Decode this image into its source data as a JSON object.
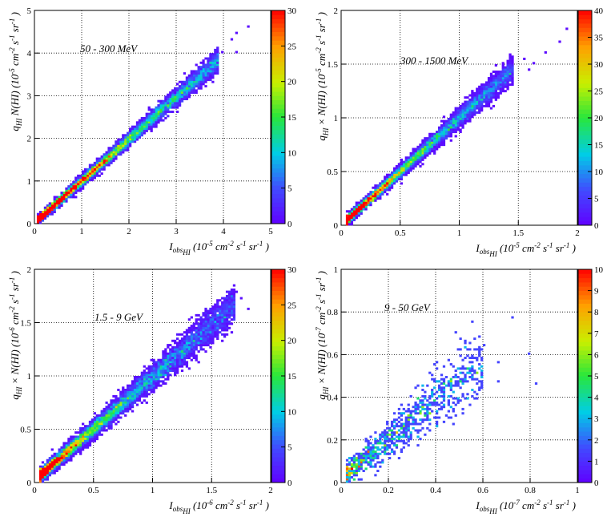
{
  "chart_data": [
    {
      "type": "heatmap",
      "annotation": "50 - 300 MeV",
      "xlim": [
        0,
        5
      ],
      "ylim": [
        0,
        5
      ],
      "x_ticks": [
        "0",
        "1",
        "2",
        "3",
        "4",
        "5"
      ],
      "y_ticks": [
        "0",
        "1",
        "2",
        "3",
        "4",
        "5"
      ],
      "xlabel": {
        "main": "I",
        "sub": "obs",
        "subsub": "HI",
        "units": "(10",
        "exp": "-5",
        "rest": " cm",
        "e2": "-2",
        "r2": " s",
        "e3": "-1",
        "r3": " sr",
        "e4": "-1",
        "r4": " )"
      },
      "ylabel": {
        "q": "q",
        "qsub": "HI",
        "pre": " N(HI) (10",
        "exp": "-5",
        "rest": " cm",
        "e2": "-2",
        "r2": " s",
        "e3": "-1",
        "r3": " sr",
        "e4": "-1"
      },
      "colorbar": {
        "max": 30,
        "ticks": [
          "0",
          "5",
          "10",
          "15",
          "20",
          "25",
          "30"
        ]
      },
      "trend": {
        "x0": 0.05,
        "x1": 3.9,
        "slope": 0.98,
        "intercept": 0.02,
        "spread": 0.09
      },
      "outliers": [
        [
          4.15,
          4.35
        ],
        [
          4.25,
          4.45
        ],
        [
          4.55,
          4.6
        ],
        [
          3.85,
          3.8
        ],
        [
          3.95,
          4.0
        ],
        [
          4.25,
          4.0
        ]
      ]
    },
    {
      "type": "heatmap",
      "annotation": "300 - 1500 MeV",
      "xlim": [
        0,
        2
      ],
      "ylim": [
        0,
        2
      ],
      "x_ticks": [
        "0",
        "0.5",
        "1",
        "1.5",
        "2"
      ],
      "y_ticks": [
        "0",
        "0.5",
        "1",
        "1.5",
        "2"
      ],
      "xlabel": {
        "main": "I",
        "sub": "obs",
        "subsub": "HI",
        "units": "(10",
        "exp": "-5",
        "rest": " cm",
        "e2": "-2",
        "r2": " s",
        "e3": "-1",
        "r3": " sr",
        "e4": "-1",
        "r4": " )"
      },
      "ylabel": {
        "q": "q",
        "qsub": "HI",
        "pre": " × N(HI) (10",
        "exp": "-5",
        "rest": " cm",
        "e2": "-2",
        "r2": " s",
        "e3": "-1",
        "r3": " sr",
        "e4": "-1"
      },
      "colorbar": {
        "max": 40,
        "ticks": [
          "0",
          "5",
          "10",
          "15",
          "20",
          "25",
          "30",
          "35",
          "40"
        ]
      },
      "trend": {
        "x0": 0.04,
        "x1": 1.45,
        "slope": 1.0,
        "intercept": 0.0,
        "spread": 0.04
      },
      "outliers": [
        [
          1.55,
          1.55
        ],
        [
          1.58,
          1.45
        ],
        [
          1.62,
          1.5
        ],
        [
          1.72,
          1.6
        ],
        [
          1.85,
          1.7
        ],
        [
          1.9,
          1.83
        ]
      ]
    },
    {
      "type": "heatmap",
      "annotation": "1.5 - 9 GeV",
      "xlim": [
        0,
        2
      ],
      "ylim": [
        0,
        2
      ],
      "x_ticks": [
        "0",
        "0.5",
        "1",
        "1.5",
        "2"
      ],
      "y_ticks": [
        "0",
        "0.5",
        "1",
        "1.5",
        "2"
      ],
      "xlabel": {
        "main": "I",
        "sub": "obs",
        "subsub": "HI",
        "units": "(10",
        "exp": "-6",
        "rest": " cm",
        "e2": "-2",
        "r2": " s",
        "e3": "-1",
        "r3": " sr",
        "e4": "-1",
        "r4": " )"
      },
      "ylabel": {
        "q": "q",
        "qsub": "HI",
        "pre": " × N(HI) (10",
        "exp": "-6",
        "rest": " cm",
        "e2": "-2",
        "r2": " s",
        "e3": "-1",
        "r3": " sr",
        "e4": "-1"
      },
      "colorbar": {
        "max": 30,
        "ticks": [
          "0",
          "5",
          "10",
          "15",
          "20",
          "25",
          "30"
        ]
      },
      "trend": {
        "x0": 0.04,
        "x1": 1.7,
        "slope": 0.97,
        "intercept": 0.02,
        "spread": 0.06
      },
      "outliers": [
        [
          1.7,
          1.78
        ],
        [
          1.75,
          1.72
        ],
        [
          1.8,
          1.62
        ],
        [
          1.55,
          1.45
        ],
        [
          1.6,
          1.58
        ]
      ]
    },
    {
      "type": "heatmap",
      "annotation": "9 - 50 GeV",
      "xlim": [
        0,
        1
      ],
      "ylim": [
        0,
        1
      ],
      "x_ticks": [
        "0",
        "0.2",
        "0.4",
        "0.6",
        "0.8",
        "1"
      ],
      "y_ticks": [
        "0",
        "0.2",
        "0.4",
        "0.6",
        "0.8",
        "1"
      ],
      "xlabel": {
        "main": "I",
        "sub": "obs",
        "subsub": "HI",
        "units": "(10",
        "exp": "-7",
        "rest": " cm",
        "e2": "-2",
        "r2": " s",
        "e3": "-1",
        "r3": " sr",
        "e4": "-1",
        "r4": " )"
      },
      "ylabel": {
        "q": "q",
        "qsub": "HI",
        "pre": " × N(HI) (10",
        "exp": "-7",
        "rest": " cm",
        "e2": "-2",
        "r2": " s",
        "e3": "-1",
        "r3": " sr",
        "e4": "-1"
      },
      "colorbar": {
        "max": 10,
        "ticks": [
          "0",
          "1",
          "2",
          "3",
          "4",
          "5",
          "6",
          "7",
          "8",
          "9",
          "10"
        ]
      },
      "trend": {
        "x0": 0.02,
        "x1": 0.6,
        "slope": 0.92,
        "intercept": 0.02,
        "spread": 0.06
      },
      "outliers": [
        [
          0.72,
          0.77
        ],
        [
          0.79,
          0.6
        ],
        [
          0.66,
          0.47
        ],
        [
          0.82,
          0.46
        ],
        [
          0.6,
          0.64
        ],
        [
          0.58,
          0.48
        ],
        [
          0.66,
          0.57
        ]
      ]
    }
  ]
}
